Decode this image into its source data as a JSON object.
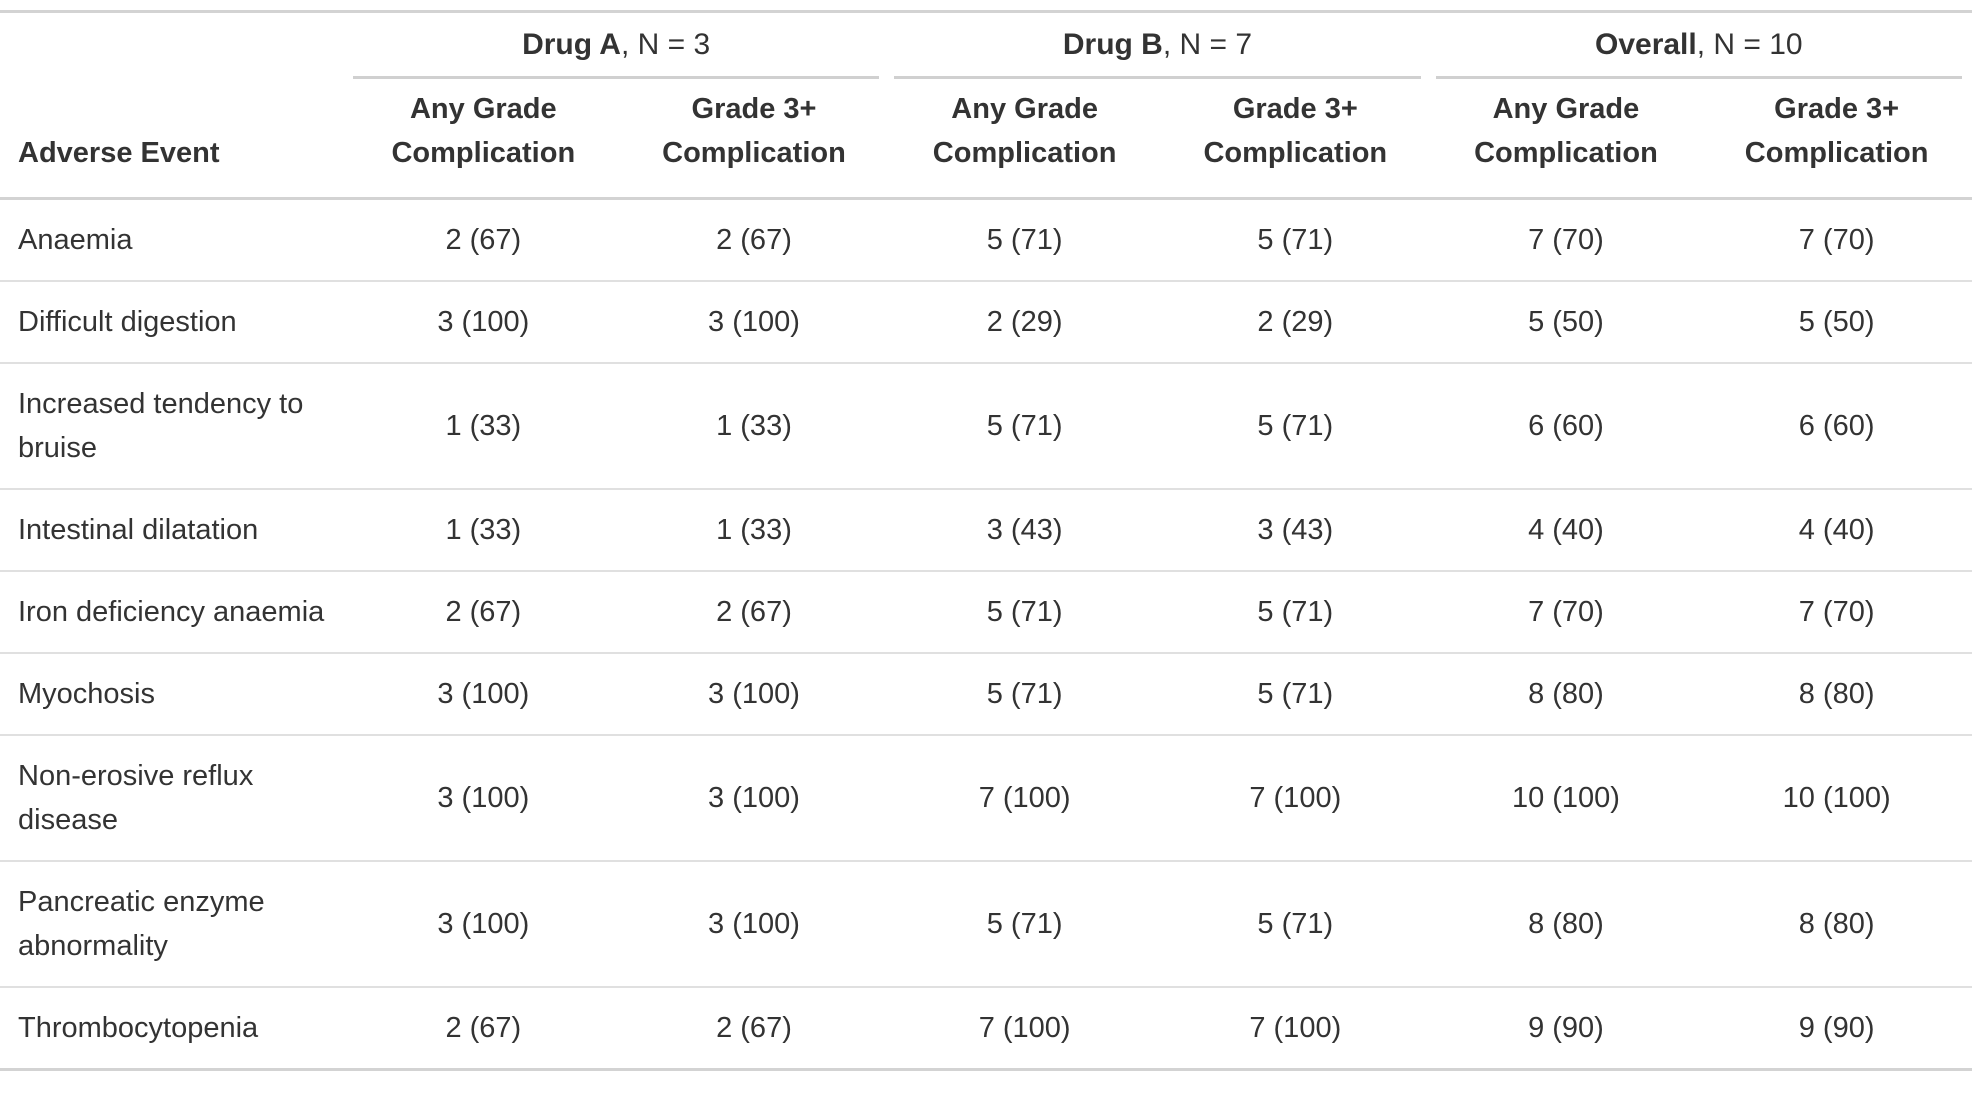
{
  "colors": {
    "text": "#333333",
    "major_rule": "#d3d3d3",
    "row_rule": "#e0e0e0",
    "background": "#ffffff"
  },
  "chart_data": {
    "type": "table",
    "row_header": "Adverse Event",
    "groups": [
      {
        "name": "Drug A",
        "n_label": ", N = 3"
      },
      {
        "name": "Drug B",
        "n_label": ", N = 7"
      },
      {
        "name": "Overall",
        "n_label": ", N = 10"
      }
    ],
    "subheaders": {
      "any_grade": "Any Grade\nComplication",
      "grade3": "Grade 3+\nComplication"
    },
    "rows": [
      {
        "label": "Anaemia",
        "values": [
          "2 (67)",
          "2 (67)",
          "5 (71)",
          "5 (71)",
          "7 (70)",
          "7 (70)"
        ]
      },
      {
        "label": "Difficult digestion",
        "values": [
          "3 (100)",
          "3 (100)",
          "2 (29)",
          "2 (29)",
          "5 (50)",
          "5 (50)"
        ]
      },
      {
        "label": "Increased tendency to bruise",
        "values": [
          "1 (33)",
          "1 (33)",
          "5 (71)",
          "5 (71)",
          "6 (60)",
          "6 (60)"
        ]
      },
      {
        "label": "Intestinal dilatation",
        "values": [
          "1 (33)",
          "1 (33)",
          "3 (43)",
          "3 (43)",
          "4 (40)",
          "4 (40)"
        ]
      },
      {
        "label": "Iron deficiency anaemia",
        "values": [
          "2 (67)",
          "2 (67)",
          "5 (71)",
          "5 (71)",
          "7 (70)",
          "7 (70)"
        ]
      },
      {
        "label": "Myochosis",
        "values": [
          "3 (100)",
          "3 (100)",
          "5 (71)",
          "5 (71)",
          "8 (80)",
          "8 (80)"
        ]
      },
      {
        "label": "Non-erosive reflux disease",
        "values": [
          "3 (100)",
          "3 (100)",
          "7 (100)",
          "7 (100)",
          "10 (100)",
          "10 (100)"
        ]
      },
      {
        "label": "Pancreatic enzyme abnormality",
        "values": [
          "3 (100)",
          "3 (100)",
          "5 (71)",
          "5 (71)",
          "8 (80)",
          "8 (80)"
        ]
      },
      {
        "label": "Thrombocytopenia",
        "values": [
          "2 (67)",
          "2 (67)",
          "7 (100)",
          "7 (100)",
          "9 (90)",
          "9 (90)"
        ]
      }
    ]
  }
}
